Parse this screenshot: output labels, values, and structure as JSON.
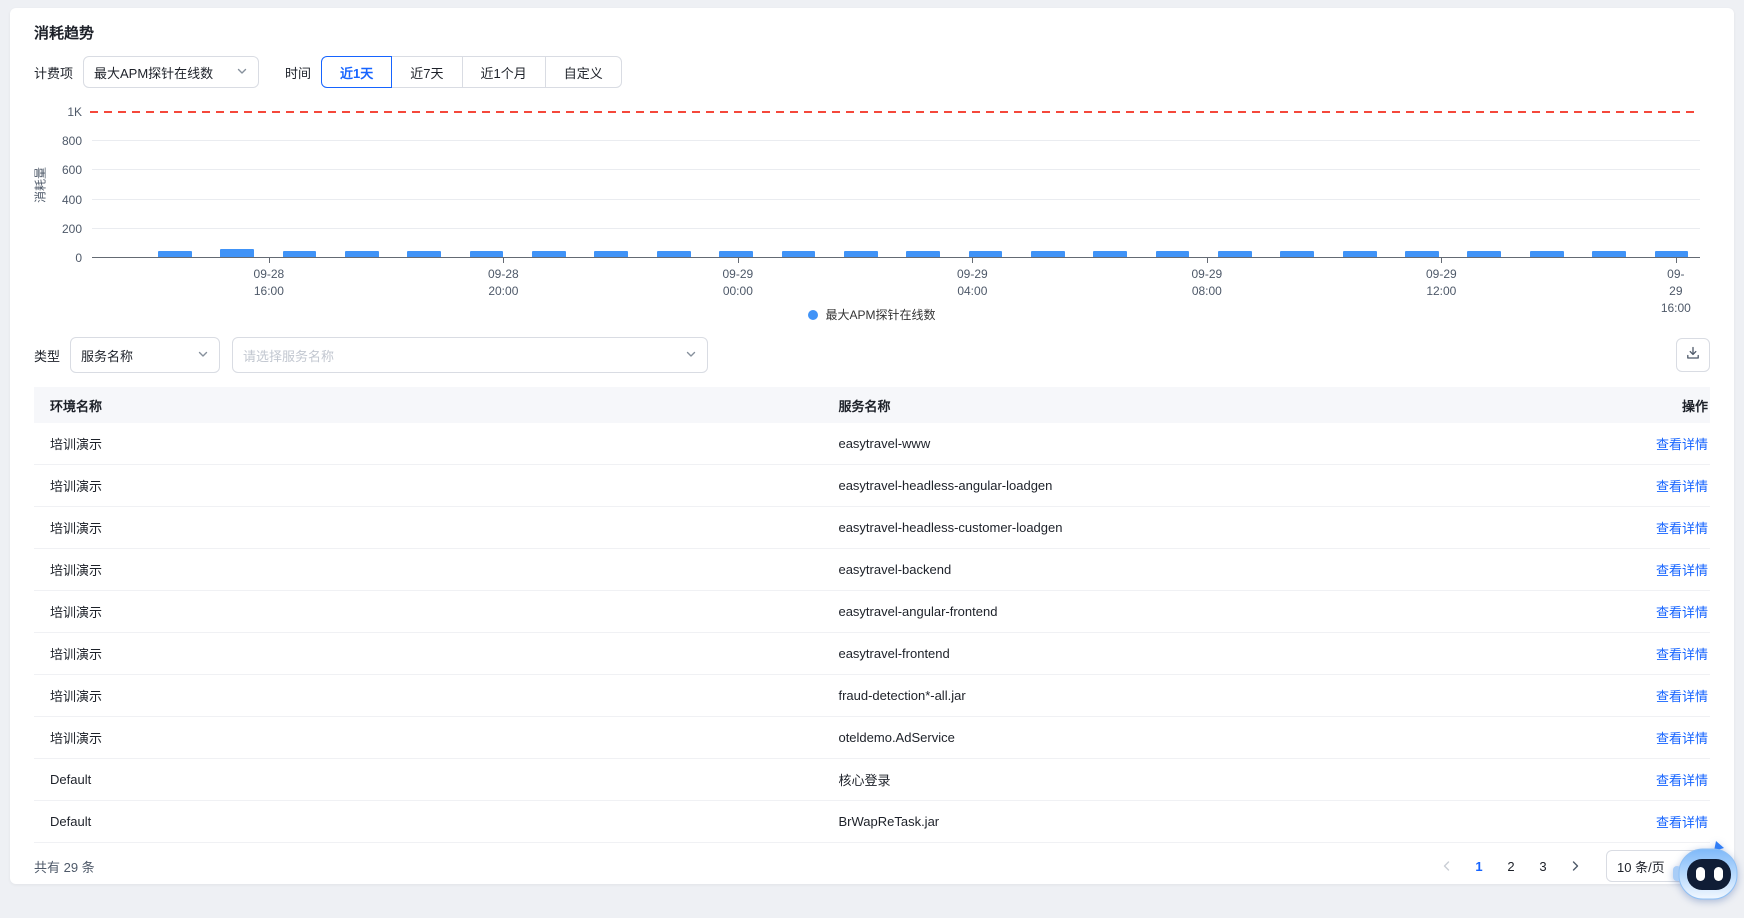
{
  "page": {
    "title": "消耗趋势"
  },
  "filters": {
    "billing_label": "计费项",
    "billing_value": "最大APM探针在线数",
    "time_label": "时间",
    "time_tabs": [
      {
        "label": "近1天",
        "active": true
      },
      {
        "label": "近7天",
        "active": false
      },
      {
        "label": "近1个月",
        "active": false
      },
      {
        "label": "自定义",
        "active": false
      }
    ],
    "type_label": "类型",
    "type_value": "服务名称",
    "service_placeholder": "请选择服务名称"
  },
  "chart_data": {
    "type": "bar",
    "title": "消耗趋势",
    "xlabel": "",
    "ylabel": "消耗量",
    "ylim": [
      0,
      1000
    ],
    "y_ticks": [
      "0",
      "200",
      "400",
      "600",
      "800",
      "1K"
    ],
    "grid": true,
    "legend_position": "bottom",
    "threshold_line": {
      "value": 1000,
      "label": "1K",
      "color": "#f5483b",
      "style": "dashed"
    },
    "x_tick_labels": [
      [
        "09-28",
        "16:00"
      ],
      [
        "09-28",
        "20:00"
      ],
      [
        "09-29",
        "00:00"
      ],
      [
        "09-29",
        "04:00"
      ],
      [
        "09-29",
        "08:00"
      ],
      [
        "09-29",
        "12:00"
      ],
      [
        "09-29",
        "16:00"
      ]
    ],
    "series": [
      {
        "name": "最大APM探针在线数",
        "color": "#4093f7",
        "values": [
          38,
          52,
          40,
          38,
          38,
          40,
          38,
          38,
          40,
          38,
          38,
          40,
          38,
          38,
          38,
          40,
          38,
          40,
          38,
          38,
          40,
          38,
          38,
          40,
          42
        ]
      }
    ]
  },
  "table": {
    "columns": {
      "env": "环境名称",
      "service": "服务名称",
      "action": "操作"
    },
    "action_label": "查看详情",
    "rows": [
      {
        "env": "培训演示",
        "service": "easytravel-www"
      },
      {
        "env": "培训演示",
        "service": "easytravel-headless-angular-loadgen"
      },
      {
        "env": "培训演示",
        "service": "easytravel-headless-customer-loadgen"
      },
      {
        "env": "培训演示",
        "service": "easytravel-backend"
      },
      {
        "env": "培训演示",
        "service": "easytravel-angular-frontend"
      },
      {
        "env": "培训演示",
        "service": "easytravel-frontend"
      },
      {
        "env": "培训演示",
        "service": "fraud-detection*-all.jar"
      },
      {
        "env": "培训演示",
        "service": "oteldemo.AdService"
      },
      {
        "env": "Default",
        "service": "核心登录"
      },
      {
        "env": "Default",
        "service": "BrWapReTask.jar"
      }
    ]
  },
  "footer": {
    "total_text": "共有 29 条",
    "pages": [
      "1",
      "2",
      "3"
    ],
    "current_page": "1",
    "prev_enabled": false,
    "next_enabled": true,
    "page_size_value": "10 条/页"
  },
  "colors": {
    "accent": "#1664ff",
    "bar": "#4093f7",
    "threshold": "#f5483b",
    "table_header_bg": "#f6f7fa"
  }
}
